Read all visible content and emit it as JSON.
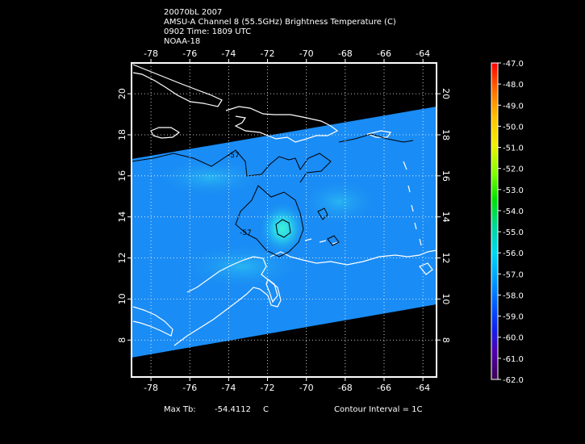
{
  "header": {
    "line1": "20070bL 2007",
    "line2": "AMSU-A Channel 8 (55.5GHz) Brightness Temperature (C)",
    "line3": "0902 Time: 1809 UTC",
    "line4": "NOAA-18"
  },
  "axes": {
    "lon_ticks": [
      "-78",
      "-76",
      "-74",
      "-72",
      "-70",
      "-68",
      "-66",
      "-64"
    ],
    "lat_ticks": [
      "8",
      "10",
      "12",
      "14",
      "16",
      "18",
      "20"
    ]
  },
  "colorbar": {
    "labels": [
      "-47.0",
      "-48.0",
      "-49.0",
      "-50.0",
      "-51.0",
      "-52.0",
      "-53.0",
      "-54.0",
      "-55.0",
      "-56.0",
      "-57.0",
      "-58.0",
      "-59.0",
      "-60.0",
      "-61.0",
      "-62.0"
    ],
    "colors": [
      "#ff0000",
      "#ff5a00",
      "#ff9c00",
      "#ffd200",
      "#e6ff00",
      "#7dff00",
      "#00e600",
      "#00d28c",
      "#00e6e6",
      "#00b4ff",
      "#0078ff",
      "#0032ff",
      "#3200c8",
      "#5a009b",
      "#4b006e",
      "#3c0050"
    ]
  },
  "contours": {
    "label_a": "-57",
    "label_b": "-57"
  },
  "footer": {
    "max_tb_label": "Max Tb:",
    "max_tb_value": "-54.4112",
    "max_tb_unit": "C",
    "contour_interval": "Contour Interval = 1C"
  },
  "colors": {
    "background": "#000000",
    "field_base": "#1a8cf5",
    "field_light": "#22aaf5",
    "warm_core": "#2ee8e0",
    "coastline": "#ffffff",
    "contour": "#000000"
  }
}
